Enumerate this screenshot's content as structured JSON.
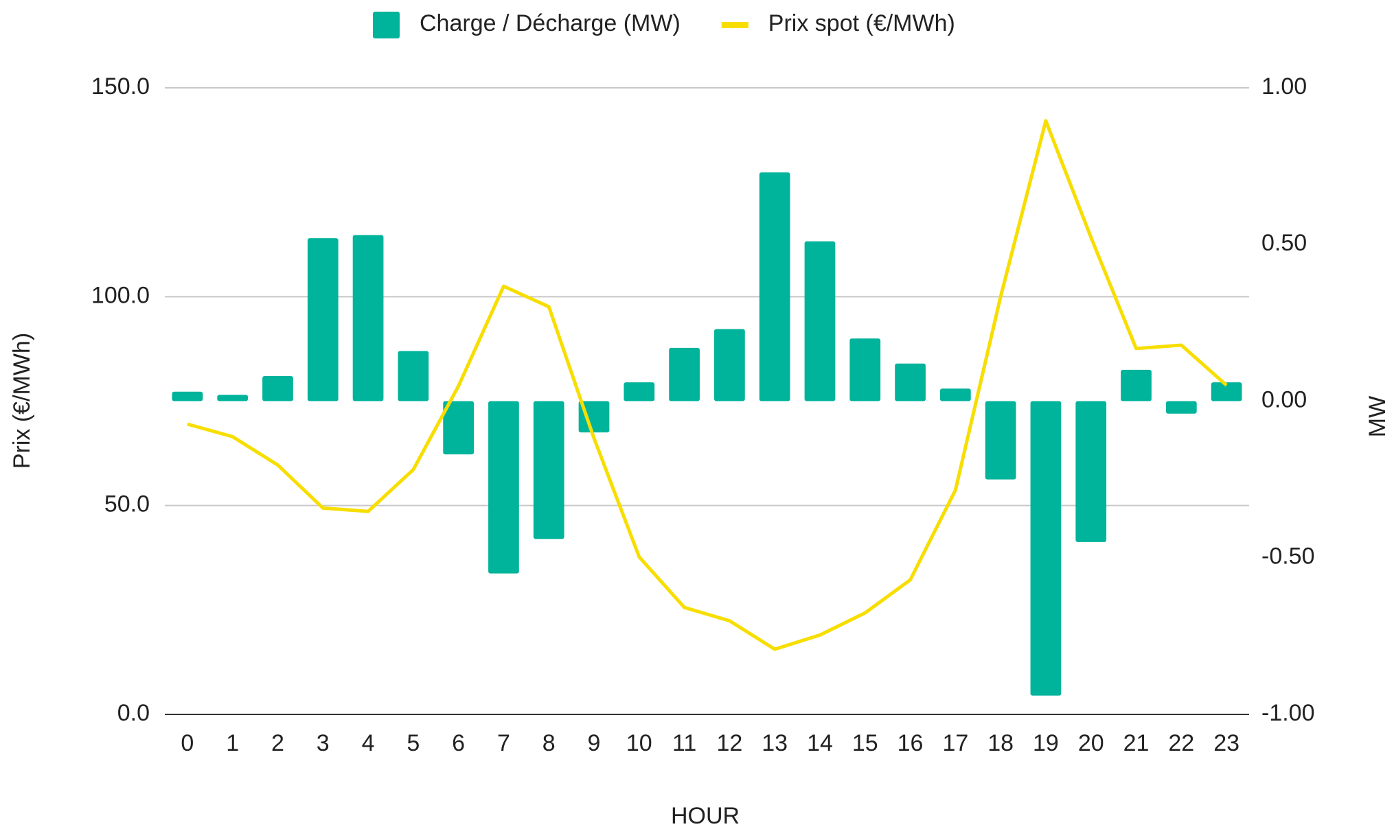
{
  "chart_data": {
    "type": "combo",
    "x_label": "HOUR",
    "y_label": "Prix (€/MWh)",
    "y2_label": "MW",
    "categories": [
      "0",
      "1",
      "2",
      "3",
      "4",
      "5",
      "6",
      "7",
      "8",
      "9",
      "10",
      "11",
      "12",
      "13",
      "14",
      "15",
      "16",
      "17",
      "18",
      "19",
      "20",
      "21",
      "22",
      "23"
    ],
    "series": [
      {
        "name": "Charge / Décharge (MW)",
        "type": "bar",
        "axis": "y2",
        "color": "#00b39b",
        "values": [
          0.03,
          0.02,
          0.08,
          0.52,
          0.53,
          0.16,
          -0.17,
          -0.55,
          -0.44,
          -0.1,
          0.06,
          0.17,
          0.23,
          0.73,
          0.51,
          0.2,
          0.12,
          0.04,
          -0.25,
          -0.94,
          -0.45,
          0.1,
          -0.04,
          0.06
        ]
      },
      {
        "name": "Prix spot (€/MWh)",
        "type": "line",
        "color": "#f7de00",
        "values": [
          69.5,
          66.5,
          59.7,
          49.4,
          48.6,
          58.6,
          78.6,
          102.5,
          97.6,
          66.1,
          37.7,
          25.6,
          22.4,
          15.6,
          19.0,
          24.3,
          32.2,
          53.7,
          100.0,
          142.1,
          114.2,
          87.6,
          88.4,
          78.8
        ]
      }
    ],
    "ylim": [
      0,
      150
    ],
    "yticks": [
      {
        "value": 0,
        "label": "0.0"
      },
      {
        "value": 50,
        "label": "50.0"
      },
      {
        "value": 100,
        "label": "100.0"
      },
      {
        "value": 150,
        "label": "150.0"
      }
    ],
    "y2lim": [
      -1,
      1
    ],
    "y2ticks": [
      {
        "value": -1,
        "label": "-1.00"
      },
      {
        "value": -0.5,
        "label": "-0.50"
      },
      {
        "value": 0,
        "label": "0.00"
      },
      {
        "value": 0.5,
        "label": "0.50"
      },
      {
        "value": 1,
        "label": "1.00"
      }
    ],
    "grid": true,
    "legend": "top"
  }
}
